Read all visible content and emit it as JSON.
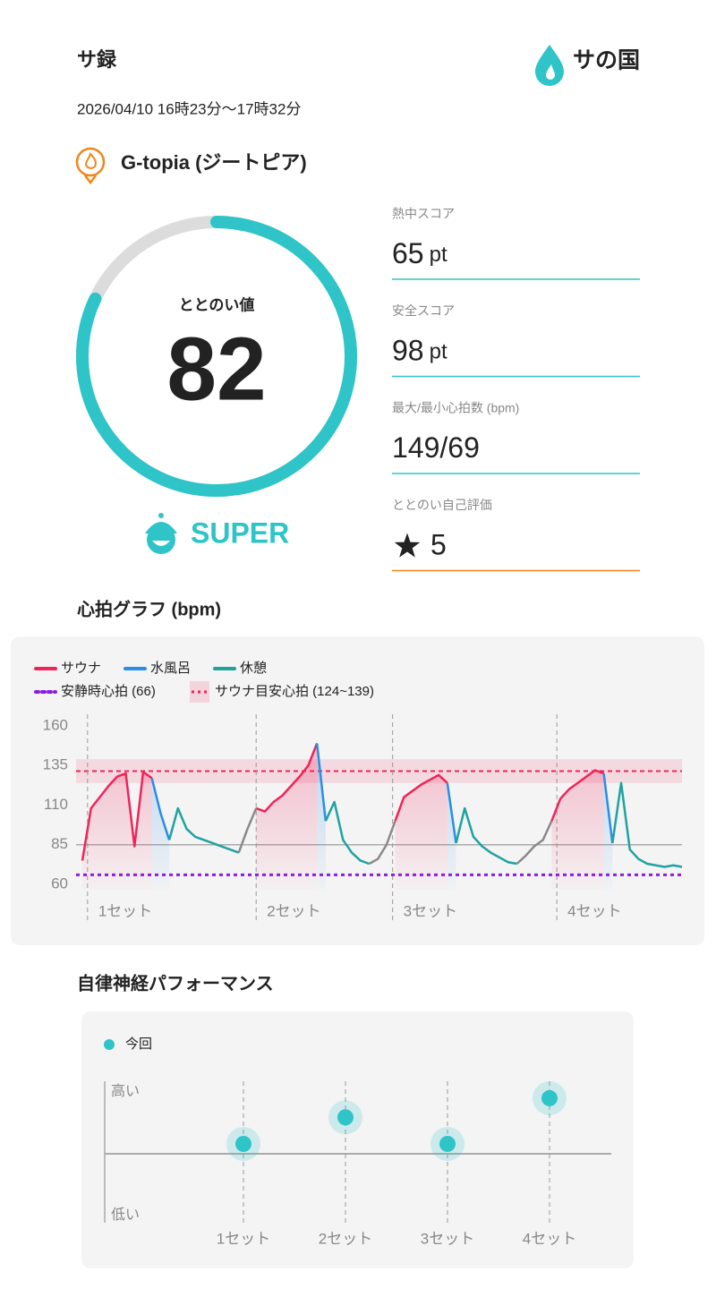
{
  "header": {
    "title": "サ録",
    "logo": "サの国",
    "datetime": "2026/04/10 16時23分～17時32分"
  },
  "venue": "G-topia (ジートピア)",
  "score": {
    "label": "ととのい値",
    "value": 82,
    "range": [
      0,
      100
    ],
    "rank": "SUPER"
  },
  "metrics": [
    {
      "label": "熱中スコア",
      "value": 65,
      "unit": "pt"
    },
    {
      "label": "安全スコア",
      "value": 98,
      "unit": "pt"
    },
    {
      "label": "最大/最小心拍数 (bpm)",
      "value": "149/69"
    },
    {
      "label": "ととのい自己評価",
      "value": 5
    }
  ],
  "sections": {
    "heart": "心拍グラフ (bpm)",
    "autonomic": "自律神経パフォーマンス"
  },
  "chart_data": [
    {
      "type": "line",
      "x": [
        0,
        1,
        2,
        3,
        4,
        5,
        6,
        7,
        8,
        9,
        10,
        11,
        12,
        13,
        14,
        15,
        16,
        17,
        18,
        19,
        20,
        21,
        22,
        23,
        24,
        25,
        26,
        27,
        28,
        29,
        30,
        31,
        32,
        33,
        34,
        35,
        36,
        37,
        38,
        39,
        40,
        41,
        42,
        43,
        44,
        45,
        46,
        47,
        48,
        49,
        50,
        51,
        52,
        53,
        54,
        55,
        56,
        57,
        58,
        59,
        60,
        61,
        62,
        63,
        64,
        65,
        66,
        67,
        68,
        69
      ],
      "xlim": [
        0,
        69
      ],
      "ylim": [
        60,
        160
      ],
      "yticks": [
        60,
        85,
        110,
        135,
        160
      ],
      "hline": 85,
      "series": [
        {
          "name": "サウナ",
          "color": "#f0245a",
          "area": true,
          "values": [
            75,
            108,
            115,
            122,
            128,
            130,
            84,
            131,
            127,
            null,
            null,
            null,
            null,
            null,
            null,
            null,
            null,
            null,
            null,
            null,
            108,
            106,
            112,
            116,
            122,
            128,
            135,
            149,
            null,
            null,
            null,
            null,
            null,
            null,
            null,
            null,
            100,
            115,
            119,
            123,
            126,
            129,
            124,
            null,
            null,
            null,
            null,
            null,
            null,
            null,
            null,
            null,
            null,
            null,
            100,
            114,
            120,
            124,
            128,
            132,
            130,
            null,
            null,
            null,
            null,
            null,
            null,
            null,
            null,
            null
          ]
        },
        {
          "name": "水風呂",
          "color": "#2a8de8",
          "area": true,
          "values": [
            null,
            null,
            null,
            null,
            null,
            null,
            null,
            null,
            127,
            105,
            88,
            null,
            null,
            null,
            null,
            null,
            null,
            null,
            null,
            null,
            null,
            null,
            null,
            null,
            null,
            null,
            null,
            149,
            100,
            null,
            null,
            null,
            null,
            null,
            null,
            null,
            null,
            null,
            null,
            null,
            null,
            null,
            124,
            86,
            null,
            null,
            null,
            null,
            null,
            null,
            null,
            null,
            null,
            null,
            null,
            null,
            null,
            null,
            null,
            null,
            130,
            86,
            null,
            null,
            null,
            null,
            null,
            null,
            null,
            null
          ]
        },
        {
          "name": "休憩",
          "color": "#1fa3a0",
          "area": false,
          "values": [
            null,
            null,
            null,
            null,
            null,
            null,
            null,
            null,
            null,
            null,
            88,
            108,
            95,
            90,
            88,
            86,
            84,
            82,
            80,
            null,
            null,
            null,
            null,
            null,
            null,
            null,
            null,
            null,
            100,
            112,
            88,
            80,
            75,
            73,
            null,
            null,
            null,
            null,
            null,
            null,
            null,
            null,
            null,
            86,
            108,
            90,
            84,
            80,
            77,
            74,
            73,
            null,
            null,
            null,
            null,
            null,
            null,
            null,
            null,
            null,
            null,
            86,
            124,
            82,
            76,
            73,
            72,
            71,
            72,
            71
          ]
        },
        {
          "color": "#8a8a8a",
          "area": false,
          "values": [
            null,
            null,
            null,
            null,
            null,
            null,
            null,
            null,
            null,
            null,
            null,
            null,
            null,
            null,
            null,
            null,
            null,
            null,
            80,
            95,
            108,
            null,
            null,
            null,
            null,
            null,
            null,
            null,
            null,
            null,
            null,
            null,
            null,
            73,
            76,
            85,
            100,
            null,
            null,
            null,
            null,
            null,
            null,
            null,
            null,
            null,
            null,
            null,
            null,
            null,
            73,
            78,
            84,
            88,
            100,
            null,
            null,
            null,
            null,
            null,
            null,
            null,
            null,
            null,
            null,
            null,
            null,
            null,
            null,
            null
          ]
        }
      ],
      "resting": {
        "label": "安静時心拍 (66)",
        "value": 66,
        "color": "#8a1ee0"
      },
      "target": {
        "label": "サウナ目安心拍 (124~139)",
        "range": [
          124,
          139
        ],
        "color": "#f0245a"
      },
      "sets": [
        {
          "label": "1セット",
          "x": 0.6
        },
        {
          "label": "2セット",
          "x": 20
        },
        {
          "label": "3セット",
          "x": 35.7
        },
        {
          "label": "4セット",
          "x": 54.6
        }
      ]
    },
    {
      "type": "dot",
      "categories": [
        "1セット",
        "2セット",
        "3セット",
        "4セット"
      ],
      "series": [
        {
          "name": "今回",
          "color": "#2ec4c8",
          "values": [
            0.16,
            0.59,
            0.16,
            0.9
          ]
        }
      ],
      "ylim": [
        -1,
        1
      ],
      "yticks": [
        {
          "value": 1,
          "label": "高い"
        },
        {
          "value": -1,
          "label": "低い"
        }
      ]
    }
  ]
}
